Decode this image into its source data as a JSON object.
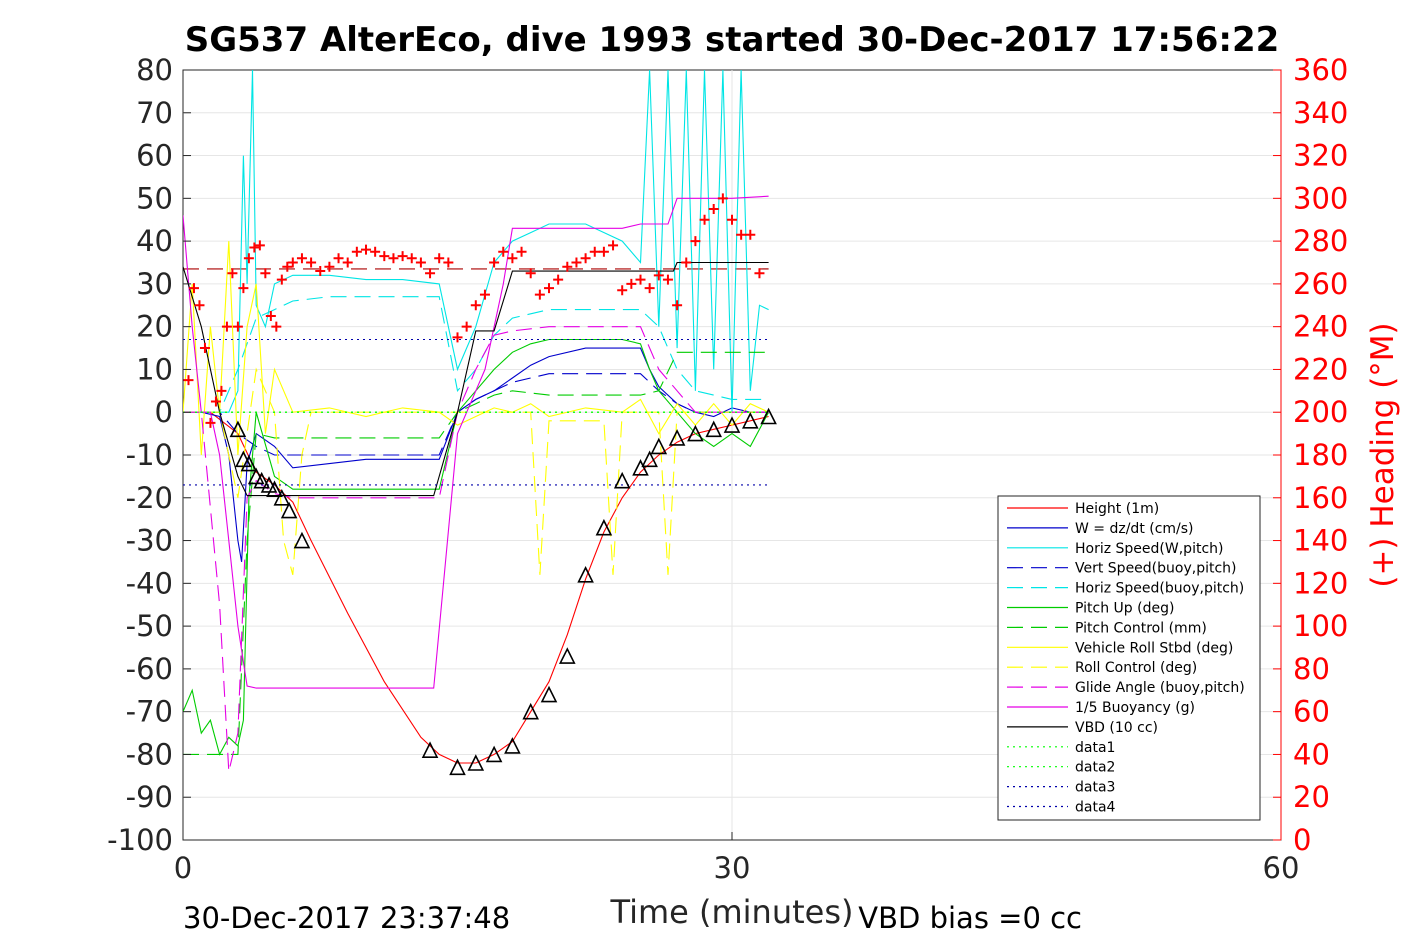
{
  "chart_data": {
    "type": "line",
    "title": "SG537 AlterEco, dive 1993 started 30-Dec-2017 17:56:22",
    "xlabel": "Time (minutes)",
    "ylabel": "",
    "y2label": "(+) Heading (°M)",
    "xlim": [
      0,
      60
    ],
    "ylim": [
      -100,
      80
    ],
    "y2lim": [
      0,
      360
    ],
    "xticks": [
      "0",
      "30",
      "60"
    ],
    "yticks": [
      "80",
      "70",
      "60",
      "50",
      "40",
      "30",
      "20",
      "10",
      "0",
      "-10",
      "-20",
      "-30",
      "-40",
      "-50",
      "-60",
      "-70",
      "-80",
      "-90",
      "-100"
    ],
    "y2ticks": [
      "360",
      "340",
      "320",
      "300",
      "280",
      "260",
      "240",
      "220",
      "200",
      "180",
      "160",
      "140",
      "120",
      "100",
      "80",
      "60",
      "40",
      "20",
      "0"
    ],
    "grid": true,
    "legend_position": "bottom-right",
    "footer_left": "30-Dec-2017 23:37:48",
    "footer_right": "VBD bias =0 cc",
    "series": [
      {
        "name": "Height (1m)",
        "color": "#ff0000",
        "dash": "solid",
        "x": [
          0,
          1.5,
          3,
          4,
          5,
          6,
          7,
          9,
          11,
          13,
          14,
          15,
          16,
          17,
          18,
          19,
          20,
          21,
          22,
          23,
          24,
          25,
          26,
          27,
          28,
          29,
          30,
          31,
          32
        ],
        "y": [
          0,
          0,
          -5,
          -14,
          -17,
          -21,
          -30,
          -47,
          -63,
          -76,
          -80,
          -82,
          -82,
          -80,
          -77,
          -70,
          -63,
          -52,
          -39,
          -28,
          -20,
          -14,
          -10,
          -7,
          -5,
          -4,
          -3,
          -2,
          -1
        ]
      },
      {
        "name": "W = dz/dt (cm/s)",
        "color": "#0000cc",
        "dash": "solid",
        "x": [
          0,
          1,
          2,
          2.5,
          3,
          3.2,
          3.5,
          4,
          5,
          6,
          8,
          10,
          12,
          14,
          15,
          16,
          17,
          18,
          19,
          20,
          22,
          24,
          25,
          25.5,
          26,
          27,
          28,
          29,
          30,
          31,
          32
        ],
        "y": [
          0,
          0,
          -1,
          -10,
          -30,
          -35,
          -12,
          -5,
          -8,
          -13,
          -12,
          -11,
          -11,
          -11,
          0,
          3,
          5,
          8,
          11,
          13,
          15,
          15,
          15,
          10,
          6,
          2,
          0,
          -1,
          1,
          0,
          0
        ]
      },
      {
        "name": "Horiz Speed(W,pitch)",
        "color": "#00e5e5",
        "dash": "solid",
        "x": [
          0,
          1,
          2,
          2.5,
          3,
          3.3,
          3.5,
          3.8,
          4,
          4.5,
          5,
          6,
          8,
          10,
          12,
          14,
          15,
          16,
          17,
          18,
          19,
          20,
          22,
          24,
          25,
          25.5,
          26,
          26.5,
          27,
          27.5,
          28,
          28.5,
          29,
          29.5,
          30,
          30.5,
          31,
          31.5,
          32
        ],
        "y": [
          0,
          0,
          0,
          0,
          5,
          60,
          30,
          80,
          25,
          20,
          30,
          32,
          32,
          31,
          31,
          30,
          10,
          20,
          35,
          40,
          42,
          44,
          44,
          40,
          35,
          80,
          20,
          80,
          15,
          80,
          5,
          80,
          10,
          80,
          0,
          80,
          5,
          25,
          24
        ]
      },
      {
        "name": "Vert Speed(buoy,pitch)",
        "color": "#0000cc",
        "dash": "dashed",
        "x": [
          0,
          2,
          3,
          4,
          5,
          6,
          8,
          10,
          12,
          14,
          15,
          16,
          17,
          18,
          19,
          20,
          22,
          24,
          25,
          26,
          27,
          28,
          30,
          32
        ],
        "y": [
          0,
          0,
          -5,
          -8,
          -10,
          -10,
          -10,
          -10,
          -10,
          -10,
          0,
          3,
          5,
          7,
          8,
          9,
          9,
          9,
          9,
          5,
          2,
          0,
          0,
          0
        ]
      },
      {
        "name": "Horiz Speed(buoy,pitch)",
        "color": "#00e5e5",
        "dash": "dashed",
        "x": [
          0,
          2,
          3,
          4,
          5,
          6,
          8,
          10,
          12,
          14,
          15,
          16,
          17,
          18,
          19,
          20,
          22,
          24,
          25,
          26,
          27,
          28,
          30,
          32
        ],
        "y": [
          0,
          0,
          10,
          22,
          24,
          26,
          27,
          27,
          27,
          27,
          5,
          10,
          18,
          22,
          23,
          24,
          24,
          24,
          24,
          20,
          10,
          5,
          3,
          3
        ]
      },
      {
        "name": "Pitch Up (deg)",
        "color": "#00cc00",
        "dash": "solid",
        "x": [
          0,
          0.5,
          1,
          1.5,
          2,
          2.5,
          3,
          3.3,
          3.6,
          4,
          5,
          6,
          8,
          10,
          12,
          14,
          15,
          16,
          17,
          18,
          19,
          20,
          22,
          24,
          25,
          25.5,
          26,
          27,
          28,
          29,
          30,
          31,
          32
        ],
        "y": [
          -70,
          -65,
          -75,
          -72,
          -80,
          -76,
          -78,
          -72,
          -20,
          0,
          -15,
          -18,
          -18,
          -18,
          -18,
          -18,
          0,
          5,
          10,
          14,
          16,
          17,
          17,
          17,
          16,
          10,
          5,
          0,
          -5,
          -8,
          -5,
          -8,
          0
        ]
      },
      {
        "name": "Pitch Control (mm)",
        "color": "#00cc00",
        "dash": "dashed",
        "x": [
          0,
          2,
          3,
          3.5,
          4,
          5,
          6,
          8,
          10,
          12,
          14,
          15,
          16,
          17,
          18,
          20,
          22,
          24,
          25,
          26,
          27,
          28,
          30,
          32
        ],
        "y": [
          -80,
          -80,
          -80,
          -30,
          -5,
          -6,
          -6,
          -6,
          -6,
          -6,
          -6,
          0,
          2,
          4,
          5,
          4,
          4,
          4,
          4,
          5,
          14,
          14,
          14,
          14
        ]
      },
      {
        "name": "Vehicle Roll Stbd (deg)",
        "color": "#ffff00",
        "dash": "solid",
        "x": [
          0,
          0.5,
          1,
          1.5,
          2,
          2.5,
          3,
          3.5,
          4,
          4.5,
          5,
          6,
          8,
          10,
          12,
          14,
          15,
          16,
          17,
          18,
          19,
          20,
          22,
          24,
          25,
          26,
          27,
          28,
          29,
          30,
          31,
          32
        ],
        "y": [
          0,
          30,
          -10,
          20,
          0,
          40,
          -10,
          20,
          30,
          -5,
          10,
          0,
          1,
          -1,
          1,
          0,
          -3,
          -1,
          1,
          0,
          2,
          -1,
          1,
          0,
          3,
          -5,
          2,
          -3,
          2,
          -3,
          2,
          0
        ]
      },
      {
        "name": "Roll Control (deg)",
        "color": "#ffff00",
        "dash": "dashed",
        "x": [
          0,
          2,
          3,
          4,
          5,
          5.5,
          6,
          6.5,
          7,
          8,
          10,
          14,
          15,
          16,
          17,
          18,
          19,
          19.5,
          20,
          22,
          23,
          23.5,
          24,
          25,
          26,
          26.5,
          27,
          28,
          30,
          32
        ],
        "y": [
          0,
          0,
          -20,
          10,
          0,
          -30,
          -38,
          -10,
          0,
          0,
          0,
          0,
          0,
          0,
          0,
          0,
          0,
          -38,
          -2,
          -2,
          -2,
          -38,
          0,
          0,
          0,
          -38,
          0,
          0,
          0,
          0
        ]
      },
      {
        "name": "Glide Angle (buoy,pitch)",
        "color": "#e500e5",
        "dash": "dashed",
        "x": [
          0,
          1,
          2,
          2.5,
          3,
          3.5,
          4,
          5,
          6,
          8,
          10,
          12,
          14,
          15,
          16,
          17,
          18,
          20,
          22,
          24,
          25,
          26,
          27,
          28,
          30,
          32
        ],
        "y": [
          0,
          0,
          -45,
          -84,
          -75,
          -20,
          -16,
          -19,
          -20,
          -20,
          -20,
          -20,
          -20,
          0,
          10,
          18,
          19,
          20,
          20,
          20,
          20,
          10,
          5,
          0,
          0,
          0
        ]
      },
      {
        "name": "1/5 Buoyancy (g)",
        "color": "#e500e5",
        "dash": "solid",
        "x": [
          0,
          0.5,
          1,
          1.5,
          2,
          2.5,
          3,
          3.5,
          4,
          6,
          8,
          10,
          12,
          13.7,
          15,
          16.5,
          17.5,
          18,
          20,
          22,
          24,
          25,
          26,
          26.5,
          27,
          28,
          30,
          32
        ],
        "y": [
          46,
          20,
          0,
          0,
          -10,
          -30,
          -50,
          -64,
          -64.5,
          -64.5,
          -64.5,
          -64.5,
          -64.5,
          -64.5,
          -5,
          10,
          30,
          43,
          43,
          43,
          43,
          44,
          44,
          44,
          50,
          50,
          50,
          50.5
        ]
      },
      {
        "name": "VBD (10 cc)",
        "color": "#000000",
        "dash": "solid",
        "x": [
          0,
          1,
          2,
          3,
          3.5,
          6,
          8,
          10,
          12,
          13.7,
          15,
          16,
          16.5,
          17,
          18,
          18.5,
          20,
          22,
          24,
          26,
          26.8,
          27,
          28,
          30,
          32
        ],
        "y": [
          34,
          20,
          0,
          -15,
          -19.5,
          -19.5,
          -19.5,
          -19.5,
          -19.5,
          -19.5,
          0,
          19,
          19,
          19,
          33,
          33,
          33,
          33,
          33,
          33,
          33,
          35,
          35,
          35,
          35
        ]
      },
      {
        "name": "data1",
        "color": "#00ff00",
        "dash": "dotted",
        "x": [
          0,
          32
        ],
        "y": [
          0,
          0
        ]
      },
      {
        "name": "data2",
        "color": "#00ff00",
        "dash": "dotted",
        "x": [
          0,
          32
        ],
        "y": [
          0,
          0
        ]
      },
      {
        "name": "data3",
        "color": "#0000aa",
        "dash": "dotted",
        "x": [
          0,
          32
        ],
        "y": [
          17,
          17
        ]
      },
      {
        "name": "data4",
        "color": "#0000aa",
        "dash": "dotted",
        "x": [
          0,
          32
        ],
        "y": [
          -17,
          -17
        ]
      }
    ],
    "reference_line_heading": {
      "color": "#aa0000",
      "dash": "dashed",
      "x": [
        0,
        32
      ],
      "y2": [
        267,
        267
      ]
    },
    "heading_points": {
      "color": "#ff0000",
      "marker": "+",
      "x": [
        0.3,
        0.6,
        0.9,
        1.2,
        1.5,
        1.8,
        2.1,
        2.4,
        2.7,
        3.0,
        3.3,
        3.6,
        3.9,
        4.2,
        4.5,
        4.8,
        5.1,
        5.4,
        5.7,
        6.0,
        6.5,
        7,
        7.5,
        8,
        8.5,
        9,
        9.5,
        10,
        10.5,
        11,
        11.5,
        12,
        12.5,
        13,
        13.5,
        14,
        14.5,
        15,
        15.5,
        16,
        16.5,
        17,
        17.5,
        18,
        18.5,
        19,
        19.5,
        20,
        20.5,
        21,
        21.5,
        22,
        22.5,
        23,
        23.5,
        24,
        24.5,
        25,
        25.5,
        26,
        26.5,
        27,
        27.5,
        28,
        28.5,
        29,
        29.5,
        30,
        30.5,
        31,
        31.5
      ],
      "y2": [
        215,
        258,
        250,
        230,
        195,
        205,
        210,
        240,
        265,
        240,
        258,
        272,
        277,
        278,
        265,
        245,
        240,
        262,
        268,
        270,
        272,
        270,
        266,
        268,
        272,
        270,
        275,
        276,
        275,
        273,
        272,
        273,
        272,
        270,
        265,
        272,
        270,
        235,
        240,
        250,
        255,
        270,
        275,
        272,
        275,
        265,
        255,
        258,
        262,
        268,
        270,
        272,
        275,
        275,
        278,
        257,
        260,
        262,
        258,
        264,
        262,
        250,
        270,
        280,
        290,
        295,
        300,
        290,
        283,
        283,
        265
      ]
    },
    "depth_markers": {
      "color": "#000000",
      "marker": "triangle",
      "x": [
        3,
        3.3,
        3.6,
        4,
        4.3,
        4.7,
        5,
        5.4,
        5.8,
        6.5,
        13.5,
        15,
        16,
        17,
        18,
        19,
        20,
        21,
        22,
        23,
        24,
        25,
        25.5,
        26,
        27,
        28,
        29,
        30,
        31,
        32
      ],
      "y": [
        -4,
        -11,
        -12,
        -15,
        -16,
        -17,
        -18,
        -20,
        -23,
        -30,
        -79,
        -83,
        -82,
        -80,
        -78,
        -70,
        -66,
        -57,
        -38,
        -27,
        -16,
        -13,
        -11,
        -8,
        -6,
        -5,
        -4,
        -3,
        -2,
        -1
      ]
    }
  }
}
